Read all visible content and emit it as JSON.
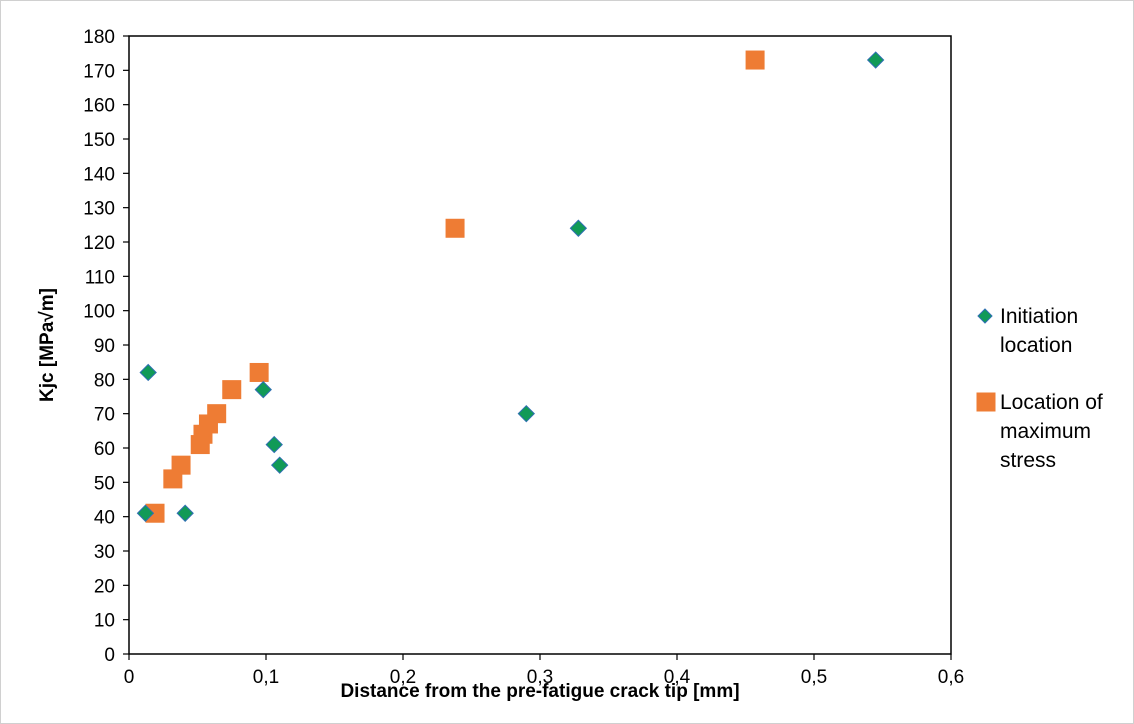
{
  "chart_data": {
    "type": "scatter",
    "title": "",
    "xlabel": "Distance from the pre-fatigue crack tip [mm]",
    "ylabel": "Kjc [MPa√m]",
    "xlim": [
      0,
      0.6
    ],
    "ylim": [
      0,
      180
    ],
    "x_ticks": [
      "0",
      "0,1",
      "0,2",
      "0,3",
      "0,4",
      "0,5",
      "0,6"
    ],
    "y_ticks": [
      "0",
      "10",
      "20",
      "30",
      "40",
      "50",
      "60",
      "70",
      "80",
      "90",
      "100",
      "110",
      "120",
      "130",
      "140",
      "150",
      "160",
      "170",
      "180"
    ],
    "grid": false,
    "legend_position": "right",
    "series": [
      {
        "name": "Initiation location",
        "legend_lines": [
          "Initiation",
          "location"
        ],
        "marker": "diamond",
        "color": "#119A57",
        "edge_color": "#2F6FB3",
        "points": [
          [
            0.545,
            173
          ],
          [
            0.328,
            124
          ],
          [
            0.014,
            82
          ],
          [
            0.098,
            77
          ],
          [
            0.29,
            70
          ],
          [
            0.106,
            61
          ],
          [
            0.11,
            55
          ],
          [
            0.012,
            41
          ],
          [
            0.041,
            41
          ]
        ]
      },
      {
        "name": "Location of maximum stress",
        "legend_lines": [
          "Location of",
          "maximum",
          "stress"
        ],
        "marker": "square",
        "color": "#EE7C34",
        "edge_color": "#EE7C34",
        "points": [
          [
            0.457,
            173
          ],
          [
            0.238,
            124
          ],
          [
            0.095,
            82
          ],
          [
            0.075,
            77
          ],
          [
            0.064,
            70
          ],
          [
            0.058,
            67
          ],
          [
            0.054,
            64
          ],
          [
            0.052,
            61
          ],
          [
            0.038,
            55
          ],
          [
            0.032,
            51
          ],
          [
            0.019,
            41
          ]
        ]
      }
    ]
  }
}
